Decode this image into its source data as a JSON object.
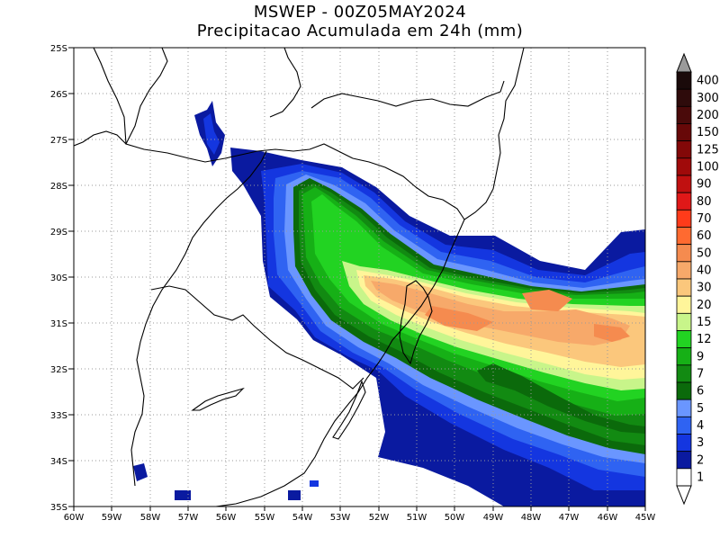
{
  "title": {
    "line1": "MSWEP - 00Z05MAY2024",
    "line2": "Precipitacao Acumulada em 24h (mm)"
  },
  "axes": {
    "lat_labels": [
      "25S",
      "26S",
      "27S",
      "28S",
      "29S",
      "30S",
      "31S",
      "32S",
      "33S",
      "34S",
      "35S"
    ],
    "lon_labels": [
      "60W",
      "59W",
      "58W",
      "57W",
      "56W",
      "55W",
      "54W",
      "53W",
      "52W",
      "51W",
      "50W",
      "49W",
      "48W",
      "47W",
      "46W",
      "45W"
    ],
    "lat_range": [
      -35,
      -25
    ],
    "lon_range": [
      -60,
      -45
    ],
    "grid": "dotted"
  },
  "colorbar": {
    "levels": [
      "400",
      "300",
      "200",
      "150",
      "125",
      "100",
      "90",
      "80",
      "70",
      "60",
      "50",
      "40",
      "30",
      "20",
      "15",
      "12",
      "9",
      "7",
      "6",
      "5",
      "4",
      "3",
      "2",
      "1"
    ],
    "colors": [
      "#1a0a0a",
      "#2e0b0b",
      "#4a0a0a",
      "#670808",
      "#830808",
      "#a00a0a",
      "#c01010",
      "#e01818",
      "#ff3b1a",
      "#ff6a30",
      "#f58b4f",
      "#f7a96a",
      "#fbc77c",
      "#fff59a",
      "#c8f58a",
      "#22d322",
      "#16b016",
      "#128a12",
      "#0b6a0b",
      "#6a96ff",
      "#2f63f2",
      "#1436e0",
      "#0a1aa0",
      "#ffffff"
    ],
    "arrow_top_color": "#9a9a9a",
    "arrow_bottom_color": "#ffffff"
  }
}
